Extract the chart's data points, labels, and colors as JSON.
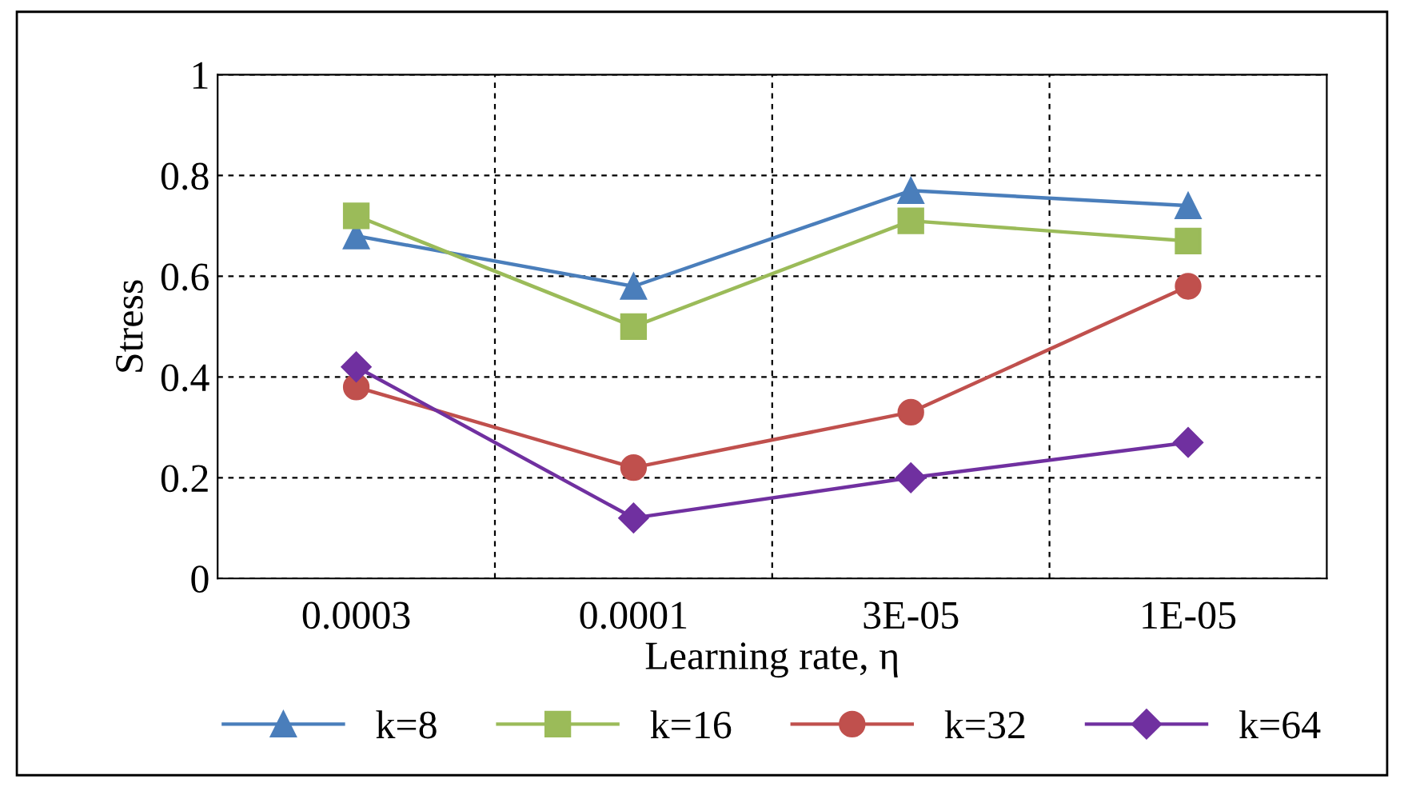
{
  "chart_data": {
    "type": "line",
    "xlabel": "Learning rate, η",
    "ylabel": "Stress",
    "categories": [
      "0.0003",
      "0.0001",
      "3E-05",
      "1E-05"
    ],
    "series": [
      {
        "name": "k=8",
        "color": "#4a7ebb",
        "marker": "triangle",
        "values": [
          0.68,
          0.58,
          0.77,
          0.74
        ]
      },
      {
        "name": "k=16",
        "color": "#9bbb59",
        "marker": "square",
        "values": [
          0.72,
          0.5,
          0.71,
          0.67
        ]
      },
      {
        "name": "k=32",
        "color": "#c0504d",
        "marker": "circle",
        "values": [
          0.38,
          0.22,
          0.33,
          0.58
        ]
      },
      {
        "name": "k=64",
        "color": "#7030a0",
        "marker": "diamond",
        "values": [
          0.42,
          0.12,
          0.2,
          0.27
        ]
      }
    ],
    "ylim": [
      0,
      1
    ],
    "yticks": [
      0,
      0.2,
      0.4,
      0.6,
      0.8,
      1
    ],
    "grid": true,
    "legend": "bottom",
    "line_style": "solid"
  }
}
